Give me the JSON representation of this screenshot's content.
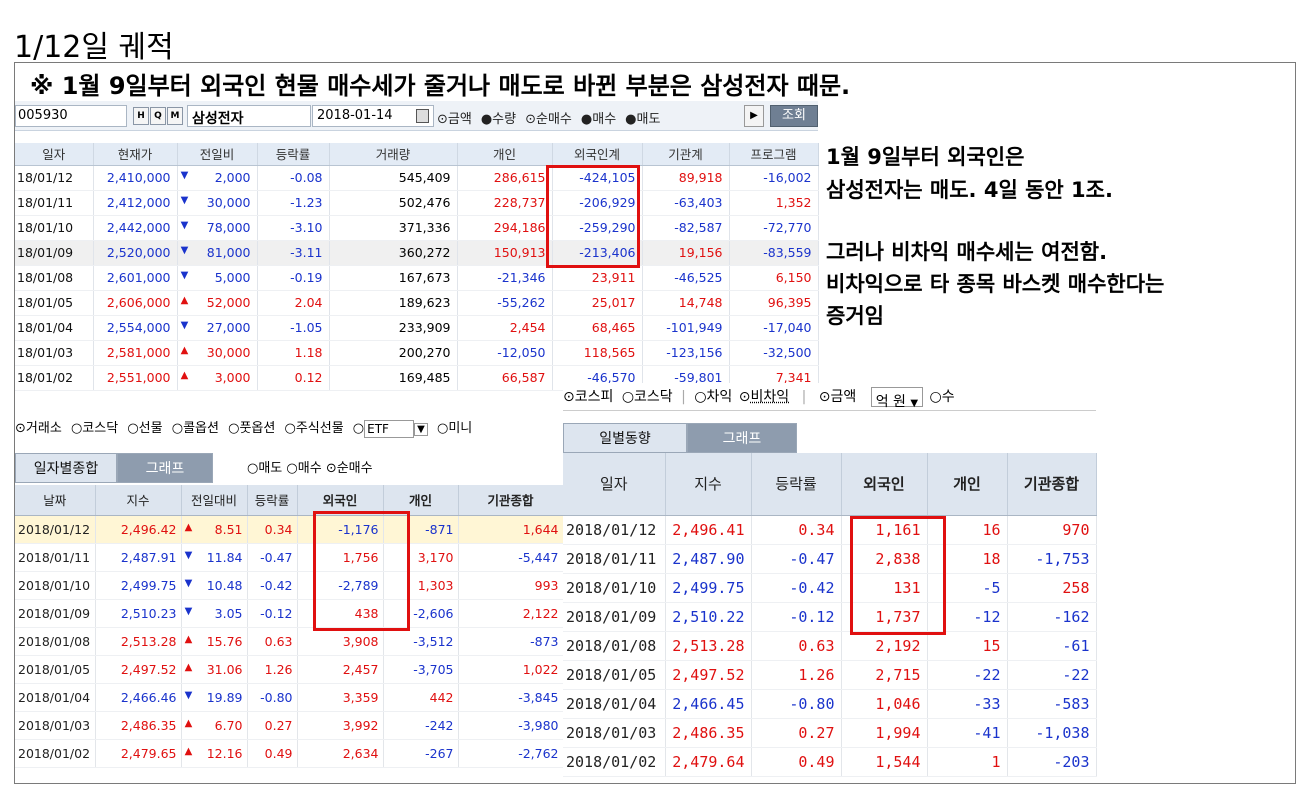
{
  "title": "1/12일 궤적",
  "headline": "※ 1월 9일부터 외국인 현물 매수세가 줄거나 매도로 바뀐 부분은 삼성전자 때문.",
  "notes": [
    "1월 9일부터 외국인은",
    "삼성전자는 매도. 4일 동안 1조.",
    "그러나 비차익 매수세는 여전함.",
    "비차익으로 타 종목 바스켓 매수한다는",
    "증거임"
  ],
  "stock_panel": {
    "code": "005930",
    "buttons": [
      "H",
      "Q",
      "M"
    ],
    "name": "삼성전자",
    "date": "2018-01-14",
    "radios": [
      "금액",
      "수량",
      "순매수",
      "매수",
      "매도"
    ],
    "play_label": "▶",
    "query_label": "조회",
    "columns": [
      "일자",
      "현재가",
      "전일비",
      "등락률",
      "거래량",
      "개인",
      "외국인계",
      "기관계",
      "프로그램"
    ],
    "rows": [
      [
        "18/01/12",
        "2,410,000",
        "▼",
        "2,000",
        "-0.08",
        "545,409",
        "286,615",
        "-424,105",
        "89,918",
        "-16,002"
      ],
      [
        "18/01/11",
        "2,412,000",
        "▼",
        "30,000",
        "-1.23",
        "502,476",
        "228,737",
        "-206,929",
        "-63,403",
        "1,352"
      ],
      [
        "18/01/10",
        "2,442,000",
        "▼",
        "78,000",
        "-3.10",
        "371,336",
        "294,186",
        "-259,290",
        "-82,587",
        "-72,770"
      ],
      [
        "18/01/09",
        "2,520,000",
        "▼",
        "81,000",
        "-3.11",
        "360,272",
        "150,913",
        "-213,406",
        "19,156",
        "-83,559"
      ],
      [
        "18/01/08",
        "2,601,000",
        "▼",
        "5,000",
        "-0.19",
        "167,673",
        "-21,346",
        "23,911",
        "-46,525",
        "6,150"
      ],
      [
        "18/01/05",
        "2,606,000",
        "▲",
        "52,000",
        "2.04",
        "189,623",
        "-55,262",
        "25,017",
        "14,748",
        "96,395"
      ],
      [
        "18/01/04",
        "2,554,000",
        "▼",
        "27,000",
        "-1.05",
        "233,909",
        "2,454",
        "68,465",
        "-101,949",
        "-17,040"
      ],
      [
        "18/01/03",
        "2,581,000",
        "▲",
        "30,000",
        "1.18",
        "200,270",
        "-12,050",
        "118,565",
        "-123,156",
        "-32,500"
      ],
      [
        "18/01/02",
        "2,551,000",
        "▲",
        "3,000",
        "0.12",
        "169,485",
        "66,587",
        "-46,570",
        "-59,801",
        "7,341"
      ]
    ]
  },
  "kospi_left": {
    "market_options": [
      "거래소",
      "코스닥",
      "선물",
      "콜옵션",
      "풋옵션",
      "주식선물"
    ],
    "etf_value": "ETF",
    "mini_label": "미니",
    "tabs": [
      "일자별종합",
      "그래프"
    ],
    "radios": [
      "매도",
      "매수",
      "순매수"
    ],
    "columns": [
      "날짜",
      "지수",
      "전일대비",
      "등락률",
      "외국인",
      "개인",
      "기관종합"
    ],
    "rows": [
      [
        "2018/01/12",
        "2,496.42",
        "▲",
        "8.51",
        "0.34",
        "-1,176",
        "-871",
        "1,644"
      ],
      [
        "2018/01/11",
        "2,487.91",
        "▼",
        "11.84",
        "-0.47",
        "1,756",
        "3,170",
        "-5,447"
      ],
      [
        "2018/01/10",
        "2,499.75",
        "▼",
        "10.48",
        "-0.42",
        "-2,789",
        "1,303",
        "993"
      ],
      [
        "2018/01/09",
        "2,510.23",
        "▼",
        "3.05",
        "-0.12",
        "438",
        "-2,606",
        "2,122"
      ],
      [
        "2018/01/08",
        "2,513.28",
        "▲",
        "15.76",
        "0.63",
        "3,908",
        "-3,512",
        "-873"
      ],
      [
        "2018/01/05",
        "2,497.52",
        "▲",
        "31.06",
        "1.26",
        "2,457",
        "-3,705",
        "1,022"
      ],
      [
        "2018/01/04",
        "2,466.46",
        "▼",
        "19.89",
        "-0.80",
        "3,359",
        "442",
        "-3,845"
      ],
      [
        "2018/01/03",
        "2,486.35",
        "▲",
        "6.70",
        "0.27",
        "3,992",
        "-242",
        "-3,980"
      ],
      [
        "2018/01/02",
        "2,479.65",
        "▲",
        "12.16",
        "0.49",
        "2,634",
        "-267",
        "-2,762"
      ]
    ]
  },
  "kospi_right": {
    "options": [
      "코스피",
      "코스닥",
      "차익",
      "비차익",
      "금액"
    ],
    "unit_value": "억   원",
    "trail_option": "수",
    "tabs": [
      "일별동향",
      "그래프"
    ],
    "columns": [
      "일자",
      "지수",
      "등락률",
      "외국인",
      "개인",
      "기관종합"
    ],
    "rows": [
      [
        "2018/01/12",
        "2,496.41",
        "0.34",
        "1,161",
        "16",
        "970"
      ],
      [
        "2018/01/11",
        "2,487.90",
        "-0.47",
        "2,838",
        "18",
        "-1,753"
      ],
      [
        "2018/01/10",
        "2,499.75",
        "-0.42",
        "131",
        "-5",
        "258"
      ],
      [
        "2018/01/09",
        "2,510.22",
        "-0.12",
        "1,737",
        "-12",
        "-162"
      ],
      [
        "2018/01/08",
        "2,513.28",
        "0.63",
        "2,192",
        "15",
        "-61"
      ],
      [
        "2018/01/05",
        "2,497.52",
        "1.26",
        "2,715",
        "-22",
        "-22"
      ],
      [
        "2018/01/04",
        "2,466.45",
        "-0.80",
        "1,046",
        "-33",
        "-583"
      ],
      [
        "2018/01/03",
        "2,486.35",
        "0.27",
        "1,994",
        "-41",
        "-1,038"
      ],
      [
        "2018/01/02",
        "2,479.64",
        "0.49",
        "1,544",
        "1",
        "-203"
      ]
    ]
  },
  "colors": {
    "up": "#e01010",
    "down": "#1a33cc",
    "highlight_box": "#e01010"
  }
}
